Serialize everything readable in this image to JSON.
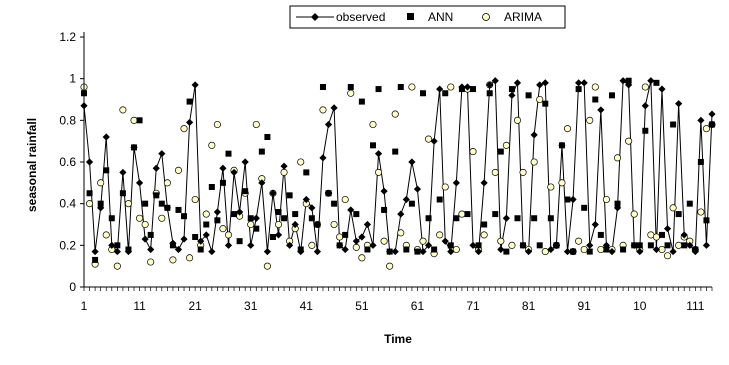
{
  "chart_data": {
    "type": "line",
    "title": "",
    "xlabel": "Time",
    "ylabel": "seasonal rainfall",
    "xlim": [
      1,
      114
    ],
    "ylim": [
      0,
      1.2
    ],
    "y_ticks": [
      "0",
      "0.2",
      "0.4",
      "0.6",
      "0.8",
      "1",
      "1.2"
    ],
    "x_tick_labels": [
      "1",
      "11",
      "21",
      "31",
      "41",
      "51",
      "61",
      "71",
      "81",
      "91",
      "10",
      "111"
    ],
    "grid": false,
    "legend": {
      "placement": "top-center",
      "boxed": true
    },
    "series": [
      {
        "name": "observed",
        "marker": "diamond",
        "line": true,
        "color": "#000000",
        "values": [
          0.87,
          0.6,
          0.17,
          0.38,
          0.72,
          0.2,
          0.17,
          0.55,
          0.17,
          0.67,
          0.5,
          0.23,
          0.18,
          0.57,
          0.64,
          0.38,
          0.21,
          0.18,
          0.23,
          0.79,
          0.97,
          0.22,
          0.25,
          0.17,
          0.36,
          0.57,
          0.2,
          0.55,
          0.36,
          0.6,
          0.2,
          0.33,
          0.5,
          0.17,
          0.45,
          0.25,
          0.58,
          0.2,
          0.3,
          0.17,
          0.42,
          0.38,
          0.17,
          0.62,
          0.78,
          0.86,
          0.2,
          0.18,
          0.37,
          0.22,
          0.24,
          0.3,
          0.2,
          0.64,
          0.46,
          0.17,
          0.17,
          0.35,
          0.42,
          0.6,
          0.47,
          0.17,
          0.2,
          0.7,
          0.95,
          0.22,
          0.17,
          0.5,
          0.96,
          0.96,
          0.2,
          0.17,
          0.5,
          0.97,
          0.99,
          0.18,
          0.33,
          0.92,
          0.98,
          0.2,
          0.17,
          0.73,
          0.97,
          0.98,
          0.18,
          0.2,
          0.68,
          0.17,
          0.42,
          0.98,
          0.98,
          0.2,
          0.3,
          0.85,
          0.2,
          0.17,
          0.38,
          0.99,
          0.97,
          0.2,
          0.17,
          0.87,
          0.99,
          0.18,
          0.95,
          0.28,
          0.17,
          0.88,
          0.25,
          0.2,
          0.17,
          0.8,
          0.2,
          0.83
        ]
      },
      {
        "name": "ANN",
        "marker": "square",
        "line": false,
        "color": "#000000",
        "values": [
          0.93,
          0.45,
          0.13,
          0.4,
          0.56,
          0.33,
          0.2,
          0.45,
          0.18,
          0.67,
          0.8,
          0.4,
          0.25,
          0.44,
          0.4,
          0.38,
          0.2,
          0.37,
          0.34,
          0.89,
          0.24,
          0.18,
          0.3,
          0.48,
          0.32,
          0.5,
          0.64,
          0.35,
          0.22,
          0.46,
          0.33,
          0.28,
          0.65,
          0.72,
          0.24,
          0.36,
          0.33,
          0.44,
          0.35,
          0.18,
          0.55,
          0.33,
          0.3,
          0.96,
          0.45,
          0.4,
          0.2,
          0.25,
          0.96,
          0.35,
          0.89,
          0.18,
          0.68,
          0.95,
          0.37,
          0.17,
          0.65,
          0.96,
          0.18,
          0.4,
          0.17,
          0.93,
          0.33,
          0.18,
          0.42,
          0.93,
          0.2,
          0.33,
          0.95,
          0.35,
          0.95,
          0.2,
          0.3,
          0.93,
          0.35,
          0.65,
          0.17,
          0.95,
          0.33,
          0.2,
          0.92,
          0.33,
          0.2,
          0.88,
          0.33,
          0.2,
          0.68,
          0.42,
          0.17,
          0.95,
          0.38,
          0.17,
          0.9,
          0.25,
          0.18,
          0.92,
          0.4,
          0.18,
          0.99,
          0.2,
          0.2,
          0.75,
          0.2,
          0.98,
          0.25,
          0.2,
          0.78,
          0.35,
          0.2,
          0.4,
          0.18,
          0.6,
          0.32,
          0.78
        ]
      },
      {
        "name": "ARIMA",
        "marker": "circle",
        "line": false,
        "color": "#ffffcc",
        "values": [
          0.96,
          0.4,
          0.11,
          0.5,
          0.25,
          0.18,
          0.1,
          0.85,
          0.4,
          0.8,
          0.33,
          0.3,
          0.12,
          0.45,
          0.33,
          0.5,
          0.13,
          0.56,
          0.76,
          0.14,
          0.42,
          0.2,
          0.35,
          0.68,
          0.78,
          0.28,
          0.25,
          0.56,
          0.34,
          0.45,
          0.3,
          0.78,
          0.52,
          0.1,
          0.45,
          0.3,
          0.55,
          0.22,
          0.28,
          0.6,
          0.4,
          0.2,
          0.3,
          0.85,
          0.45,
          0.3,
          0.24,
          0.42,
          0.93,
          0.19,
          0.14,
          0.2,
          0.78,
          0.55,
          0.22,
          0.1,
          0.83,
          0.26,
          0.2,
          0.96,
          0.18,
          0.22,
          0.71,
          0.16,
          0.25,
          0.48,
          0.96,
          0.18,
          0.35,
          0.95,
          0.65,
          0.18,
          0.25,
          0.97,
          0.55,
          0.22,
          0.68,
          0.2,
          0.8,
          0.55,
          0.18,
          0.6,
          0.9,
          0.17,
          0.48,
          0.2,
          0.5,
          0.76,
          0.17,
          0.22,
          0.18,
          0.8,
          0.96,
          0.18,
          0.42,
          0.18,
          0.62,
          0.2,
          0.7,
          0.35,
          0.18,
          0.96,
          0.25,
          0.24,
          0.18,
          0.15,
          0.38,
          0.2,
          0.24,
          0.22,
          0.18,
          0.36,
          0.76,
          0.78
        ]
      }
    ]
  }
}
